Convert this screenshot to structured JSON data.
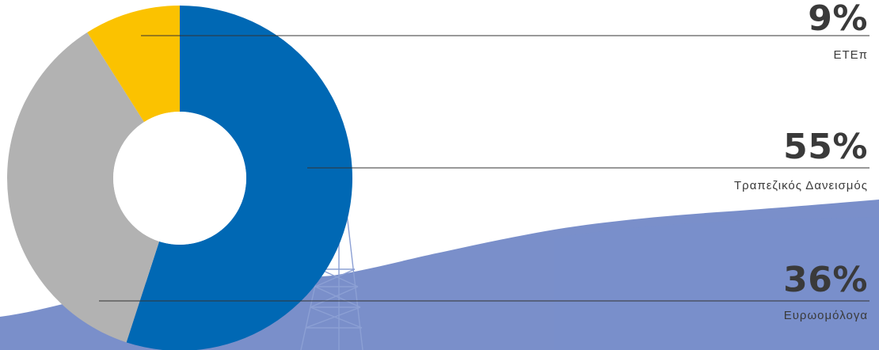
{
  "chart_data": {
    "type": "pie",
    "variant": "donut",
    "title": "",
    "slices": [
      {
        "label": "Τραπεζικός Δανεισμός",
        "value": 55,
        "value_label": "55%",
        "color": "#0068b4"
      },
      {
        "label": "Ευρωομόλογα",
        "value": 36,
        "value_label": "36%",
        "color": "#b2b2b2"
      },
      {
        "label": "ΕΤΕπ",
        "value": 9,
        "value_label": "9%",
        "color": "#fbc200"
      }
    ],
    "start_angle_deg": 0,
    "direction": "clockwise",
    "labels_placement": "right, with leader lines"
  },
  "background": {
    "description_color": "#6f86c6",
    "scene": "mountain ridge with lattice transmission tower"
  },
  "colors": {
    "text": "#3a3a3a",
    "leader_line": "#333333"
  }
}
